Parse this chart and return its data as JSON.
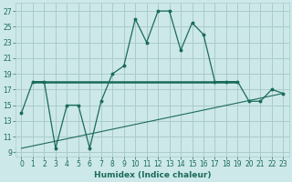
{
  "xlabel": "Humidex (Indice chaleur)",
  "ylabel": "",
  "bg_color": "#cde8e8",
  "line_color": "#1a6b5a",
  "grid_color": "#aacccc",
  "xlim": [
    -0.5,
    23.5
  ],
  "ylim": [
    8.5,
    28
  ],
  "yticks": [
    9,
    11,
    13,
    15,
    17,
    19,
    21,
    23,
    25,
    27
  ],
  "xticks": [
    0,
    1,
    2,
    3,
    4,
    5,
    6,
    7,
    8,
    9,
    10,
    11,
    12,
    13,
    14,
    15,
    16,
    17,
    18,
    19,
    20,
    21,
    22,
    23
  ],
  "line1_x": [
    0,
    1,
    2,
    3,
    4,
    5,
    6,
    7,
    8,
    9,
    10,
    11,
    12,
    13,
    14,
    15,
    16,
    17,
    18,
    19,
    20,
    21,
    22,
    23
  ],
  "line1_y": [
    14,
    18,
    18,
    9.5,
    15,
    15,
    9.5,
    15.5,
    19,
    20,
    26,
    23,
    27,
    27,
    22,
    25.5,
    24,
    18,
    18,
    18,
    15.5,
    15.5,
    17,
    16.5
  ],
  "line2_x": [
    0,
    23
  ],
  "line2_y": [
    9.5,
    16.5
  ],
  "line3_x": [
    1,
    19
  ],
  "line3_y": [
    18,
    18
  ]
}
